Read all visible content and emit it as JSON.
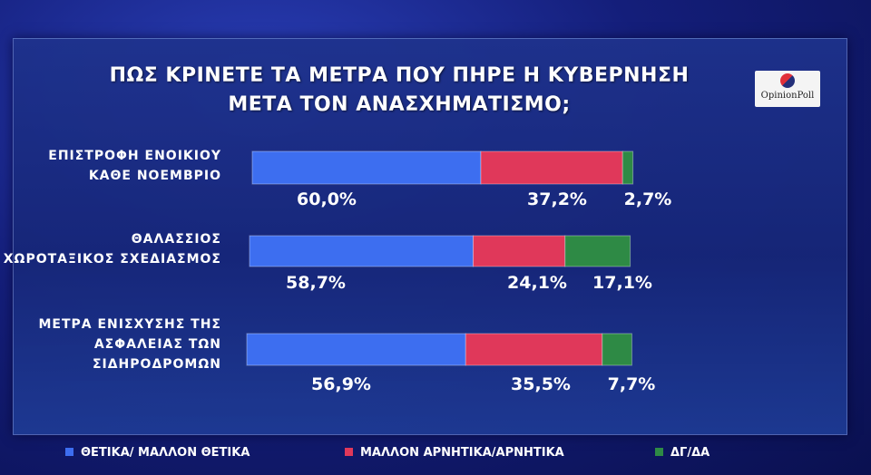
{
  "title_lines": [
    "ΠΩΣ ΚΡΙΝΕΤΕ ΤΑ ΜΕΤΡΑ ΠΟΥ ΠΗΡΕ Η ΚΥΒΕΡΝΗΣΗ",
    "ΜΕΤΑ ΤΟΝ ΑΝΑΣΧΗΜΑΤΙΣΜΟ;"
  ],
  "logo": {
    "text": "OpinionPoll"
  },
  "colors": {
    "positive": "#3d6ef0",
    "negative": "#e0385a",
    "dk": "#2e8a45"
  },
  "chart_data": {
    "type": "bar",
    "orientation": "horizontal",
    "stacked": true,
    "title": "ΠΩΣ ΚΡΙΝΕΤΕ ΤΑ ΜΕΤΡΑ ΠΟΥ ΠΗΡΕ Η ΚΥΒΕΡΝΗΣΗ ΜΕΤΑ ΤΟΝ ΑΝΑΣΧΗΜΑΤΙΣΜΟ;",
    "categories": [
      [
        "ΕΠΙΣΤΡΟΦΗ ΕΝΟΙΚΙΟΥ",
        "ΚΑΘΕ ΝΟΕΜΒΡΙΟ"
      ],
      [
        "ΘΑΛΑΣΣΙΟΣ",
        "ΧΩΡΟΤΑΞΙΚΟΣ ΣΧΕΔΙΑΣΜΟΣ"
      ],
      [
        "ΜΕΤΡΑ ΕΝΙΣΧΥΣΗΣ ΤΗΣ",
        "ΑΣΦΑΛΕΙΑΣ ΤΩΝ",
        "ΣΙΔΗΡΟΔΡΟΜΩΝ"
      ]
    ],
    "series": [
      {
        "name": "ΘΕΤΙΚΑ/ ΜΑΛΛΟΝ ΘΕΤΙΚΑ",
        "values": [
          60.0,
          58.7,
          56.9
        ],
        "labels": [
          "60,0%",
          "58,7%",
          "56,9%"
        ]
      },
      {
        "name": "ΜΑΛΛΟΝ ΑΡΝΗΤΙΚΑ/ΑΡΝΗΤΙΚΑ",
        "values": [
          37.2,
          24.1,
          35.5
        ],
        "labels": [
          "37,2%",
          "24,1%",
          "35,5%"
        ]
      },
      {
        "name": "ΔΓ/ΔΑ",
        "values": [
          2.7,
          17.1,
          7.7
        ],
        "labels": [
          "2,7%",
          "17,1%",
          "7,7%"
        ]
      }
    ],
    "legend_position": "bottom",
    "grid": false
  }
}
